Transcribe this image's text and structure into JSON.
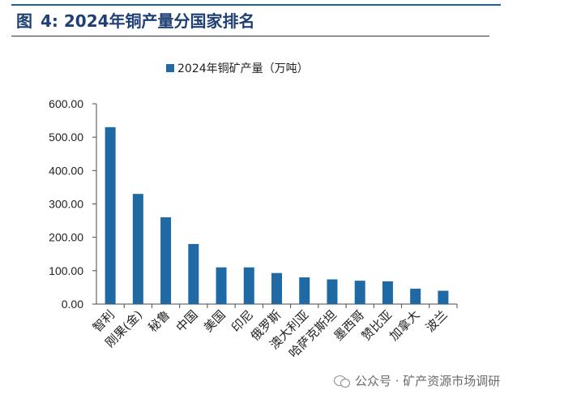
{
  "figure": {
    "label": "图",
    "number": "4:",
    "title": "2024年铜产量分国家排名"
  },
  "watermark": {
    "icon": "wechat-icon",
    "text": "公众号 · 矿产资源市场调研"
  },
  "colors": {
    "bar": "#1f6aa5",
    "title": "#1f3f74",
    "axis": "#4a4a4a",
    "rule": "#1f5f9e"
  },
  "chart_data": {
    "type": "bar",
    "title": "",
    "xlabel": "",
    "ylabel": "",
    "categories": [
      "智利",
      "刚果(金)",
      "秘鲁",
      "中国",
      "美国",
      "印尼",
      "俄罗斯",
      "澳大利亚",
      "哈萨克斯坦",
      "墨西哥",
      "赞比亚",
      "加拿大",
      "波兰"
    ],
    "series": [
      {
        "name": "2024年铜矿产量（万吨）",
        "values": [
          530,
          330,
          260,
          180,
          110,
          110,
          93,
          80,
          74,
          70,
          68,
          46,
          40
        ]
      }
    ],
    "ylim": [
      0,
      600
    ],
    "yticks": [
      "0.00",
      "100.00",
      "200.00",
      "300.00",
      "400.00",
      "500.00",
      "600.00"
    ],
    "legend": "top-center",
    "grid": false
  }
}
